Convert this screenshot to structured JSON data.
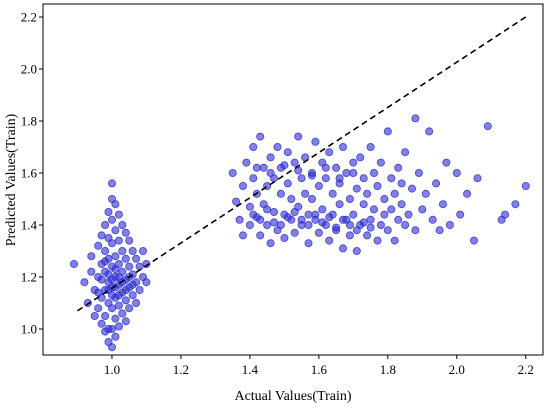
{
  "chart_data": {
    "type": "scatter",
    "title": "",
    "xlabel": "Actual Values(Train)",
    "ylabel": "Predicted Values(Train)",
    "xlim": [
      0.8,
      2.25
    ],
    "ylim": [
      0.9,
      2.25
    ],
    "xticks": [
      1.0,
      1.2,
      1.4,
      1.6,
      1.8,
      2.0,
      2.2
    ],
    "xtick_labels": [
      "1.0",
      "1.2",
      "1.4",
      "1.6",
      "1.8",
      "2.0",
      "2.2"
    ],
    "yticks": [
      1.0,
      1.2,
      1.4,
      1.6,
      1.8,
      2.0,
      2.2
    ],
    "ytick_labels": [
      "1.0",
      "1.2",
      "1.4",
      "1.6",
      "1.8",
      "2.0",
      "2.2"
    ],
    "grid": false,
    "legend": "none",
    "point_color": "#2b2bd6",
    "reference_line": {
      "style": "dashed",
      "color": "#000000",
      "from": [
        0.9,
        1.07
      ],
      "to": [
        2.2,
        2.2
      ]
    },
    "series": [
      {
        "points": [
          [
            0.89,
            1.25
          ],
          [
            0.92,
            1.18
          ],
          [
            0.93,
            1.1
          ],
          [
            0.94,
            1.28
          ],
          [
            0.95,
            1.15
          ],
          [
            0.95,
            1.05
          ],
          [
            0.96,
            1.32
          ],
          [
            0.96,
            1.2
          ],
          [
            0.96,
            1.08
          ],
          [
            0.97,
            1.36
          ],
          [
            0.97,
            1.25
          ],
          [
            0.97,
            1.12
          ],
          [
            0.97,
            1.02
          ],
          [
            0.98,
            1.4
          ],
          [
            0.98,
            1.3
          ],
          [
            0.98,
            1.22
          ],
          [
            0.98,
            1.15
          ],
          [
            0.98,
            1.05
          ],
          [
            0.98,
            0.99
          ],
          [
            0.99,
            1.45
          ],
          [
            0.99,
            1.35
          ],
          [
            0.99,
            1.27
          ],
          [
            0.99,
            1.18
          ],
          [
            0.99,
            1.1
          ],
          [
            0.99,
            1.0
          ],
          [
            0.99,
            0.95
          ],
          [
            1.0,
            1.56
          ],
          [
            1.0,
            1.5
          ],
          [
            1.0,
            1.42
          ],
          [
            1.0,
            1.33
          ],
          [
            1.0,
            1.24
          ],
          [
            1.0,
            1.16
          ],
          [
            1.0,
            1.08
          ],
          [
            1.0,
            1.0
          ],
          [
            1.0,
            0.93
          ],
          [
            1.01,
            1.48
          ],
          [
            1.01,
            1.38
          ],
          [
            1.01,
            1.28
          ],
          [
            1.01,
            1.2
          ],
          [
            1.01,
            1.12
          ],
          [
            1.01,
            1.04
          ],
          [
            1.01,
            0.97
          ],
          [
            1.02,
            1.44
          ],
          [
            1.02,
            1.34
          ],
          [
            1.02,
            1.25
          ],
          [
            1.02,
            1.17
          ],
          [
            1.02,
            1.09
          ],
          [
            1.02,
            1.01
          ],
          [
            1.03,
            1.4
          ],
          [
            1.03,
            1.3
          ],
          [
            1.03,
            1.22
          ],
          [
            1.03,
            1.14
          ],
          [
            1.03,
            1.06
          ],
          [
            1.04,
            1.37
          ],
          [
            1.04,
            1.27
          ],
          [
            1.04,
            1.19
          ],
          [
            1.04,
            1.11
          ],
          [
            1.04,
            1.03
          ],
          [
            1.05,
            1.34
          ],
          [
            1.05,
            1.24
          ],
          [
            1.05,
            1.16
          ],
          [
            1.05,
            1.08
          ],
          [
            1.06,
            1.3
          ],
          [
            1.06,
            1.21
          ],
          [
            1.06,
            1.13
          ],
          [
            1.07,
            1.27
          ],
          [
            1.07,
            1.18
          ],
          [
            1.07,
            1.1
          ],
          [
            1.08,
            1.24
          ],
          [
            1.08,
            1.15
          ],
          [
            1.09,
            1.3
          ],
          [
            1.09,
            1.2
          ],
          [
            1.1,
            1.25
          ],
          [
            1.1,
            1.18
          ],
          [
            0.94,
            1.22
          ],
          [
            0.96,
            1.14
          ],
          [
            0.97,
            1.19
          ],
          [
            0.98,
            1.26
          ],
          [
            0.99,
            1.21
          ],
          [
            1.0,
            1.19
          ],
          [
            1.01,
            1.23
          ],
          [
            1.02,
            1.2
          ],
          [
            1.03,
            1.18
          ],
          [
            1.04,
            1.15
          ],
          [
            1.05,
            1.2
          ],
          [
            1.06,
            1.17
          ],
          [
            1.0,
            1.13
          ],
          [
            0.99,
            1.15
          ],
          [
            1.01,
            1.16
          ],
          [
            1.02,
            1.13
          ],
          [
            1.35,
            1.6
          ],
          [
            1.36,
            1.49
          ],
          [
            1.37,
            1.42
          ],
          [
            1.38,
            1.55
          ],
          [
            1.38,
            1.36
          ],
          [
            1.39,
            1.64
          ],
          [
            1.4,
            1.47
          ],
          [
            1.4,
            1.4
          ],
          [
            1.41,
            1.7
          ],
          [
            1.41,
            1.58
          ],
          [
            1.42,
            1.52
          ],
          [
            1.42,
            1.43
          ],
          [
            1.43,
            1.74
          ],
          [
            1.43,
            1.36
          ],
          [
            1.44,
            1.62
          ],
          [
            1.44,
            1.48
          ],
          [
            1.45,
            1.4
          ],
          [
            1.45,
            1.55
          ],
          [
            1.46,
            1.66
          ],
          [
            1.46,
            1.33
          ],
          [
            1.47,
            1.45
          ],
          [
            1.47,
            1.58
          ],
          [
            1.48,
            1.7
          ],
          [
            1.48,
            1.38
          ],
          [
            1.49,
            1.52
          ],
          [
            1.49,
            1.62
          ],
          [
            1.5,
            1.44
          ],
          [
            1.5,
            1.35
          ],
          [
            1.51,
            1.68
          ],
          [
            1.51,
            1.56
          ],
          [
            1.52,
            1.42
          ],
          [
            1.52,
            1.5
          ],
          [
            1.53,
            1.64
          ],
          [
            1.53,
            1.37
          ],
          [
            1.54,
            1.74
          ],
          [
            1.54,
            1.47
          ],
          [
            1.55,
            1.58
          ],
          [
            1.55,
            1.4
          ],
          [
            1.56,
            1.52
          ],
          [
            1.56,
            1.66
          ],
          [
            1.57,
            1.44
          ],
          [
            1.57,
            1.33
          ],
          [
            1.58,
            1.6
          ],
          [
            1.58,
            1.5
          ],
          [
            1.59,
            1.72
          ],
          [
            1.59,
            1.42
          ],
          [
            1.6,
            1.55
          ],
          [
            1.6,
            1.37
          ],
          [
            1.61,
            1.64
          ],
          [
            1.61,
            1.46
          ],
          [
            1.62,
            1.4
          ],
          [
            1.62,
            1.58
          ],
          [
            1.63,
            1.68
          ],
          [
            1.63,
            1.34
          ],
          [
            1.64,
            1.52
          ],
          [
            1.64,
            1.44
          ],
          [
            1.65,
            1.62
          ],
          [
            1.65,
            1.38
          ],
          [
            1.66,
            1.56
          ],
          [
            1.66,
            1.48
          ],
          [
            1.67,
            1.7
          ],
          [
            1.67,
            1.31
          ],
          [
            1.68,
            1.42
          ],
          [
            1.68,
            1.6
          ],
          [
            1.69,
            1.5
          ],
          [
            1.69,
            1.36
          ],
          [
            1.7,
            1.64
          ],
          [
            1.7,
            1.44
          ],
          [
            1.71,
            1.54
          ],
          [
            1.71,
            1.3
          ],
          [
            1.72,
            1.4
          ],
          [
            1.72,
            1.66
          ],
          [
            1.73,
            1.48
          ],
          [
            1.73,
            1.58
          ],
          [
            1.74,
            1.36
          ],
          [
            1.74,
            1.52
          ],
          [
            1.75,
            1.7
          ],
          [
            1.75,
            1.42
          ],
          [
            1.76,
            1.46
          ],
          [
            1.76,
            1.6
          ],
          [
            1.77,
            1.34
          ],
          [
            1.77,
            1.55
          ],
          [
            1.78,
            1.4
          ],
          [
            1.78,
            1.64
          ],
          [
            1.79,
            1.5
          ],
          [
            1.79,
            1.44
          ],
          [
            1.8,
            1.76
          ],
          [
            1.8,
            1.38
          ],
          [
            1.81,
            1.58
          ],
          [
            1.81,
            1.46
          ],
          [
            1.82,
            1.52
          ],
          [
            1.82,
            1.34
          ],
          [
            1.83,
            1.62
          ],
          [
            1.83,
            1.42
          ],
          [
            1.84,
            1.48
          ],
          [
            1.84,
            1.56
          ],
          [
            1.85,
            1.4
          ],
          [
            1.85,
            1.68
          ],
          [
            1.86,
            1.44
          ],
          [
            1.87,
            1.54
          ],
          [
            1.88,
            1.81
          ],
          [
            1.88,
            1.38
          ],
          [
            1.89,
            1.6
          ],
          [
            1.9,
            1.46
          ],
          [
            1.91,
            1.52
          ],
          [
            1.92,
            1.76
          ],
          [
            1.93,
            1.42
          ],
          [
            1.94,
            1.56
          ],
          [
            1.95,
            1.38
          ],
          [
            1.96,
            1.48
          ],
          [
            1.97,
            1.64
          ],
          [
            1.98,
            1.4
          ],
          [
            2.0,
            1.6
          ],
          [
            2.01,
            1.44
          ],
          [
            2.03,
            1.52
          ],
          [
            2.05,
            1.34
          ],
          [
            2.06,
            1.58
          ],
          [
            2.09,
            1.78
          ],
          [
            2.13,
            1.42
          ],
          [
            2.14,
            1.44
          ],
          [
            2.17,
            1.48
          ],
          [
            2.2,
            1.55
          ],
          [
            1.41,
            1.44
          ],
          [
            1.43,
            1.42
          ],
          [
            1.45,
            1.46
          ],
          [
            1.47,
            1.41
          ],
          [
            1.49,
            1.4
          ],
          [
            1.51,
            1.43
          ],
          [
            1.53,
            1.45
          ],
          [
            1.55,
            1.42
          ],
          [
            1.57,
            1.4
          ],
          [
            1.59,
            1.44
          ],
          [
            1.61,
            1.41
          ],
          [
            1.63,
            1.43
          ],
          [
            1.65,
            1.39
          ],
          [
            1.67,
            1.42
          ],
          [
            1.69,
            1.4
          ],
          [
            1.71,
            1.38
          ],
          [
            1.73,
            1.41
          ],
          [
            1.75,
            1.39
          ],
          [
            1.42,
            1.62
          ],
          [
            1.46,
            1.6
          ],
          [
            1.5,
            1.63
          ],
          [
            1.54,
            1.61
          ],
          [
            1.58,
            1.59
          ],
          [
            1.62,
            1.62
          ],
          [
            1.66,
            1.58
          ],
          [
            1.7,
            1.6
          ]
        ]
      }
    ]
  }
}
